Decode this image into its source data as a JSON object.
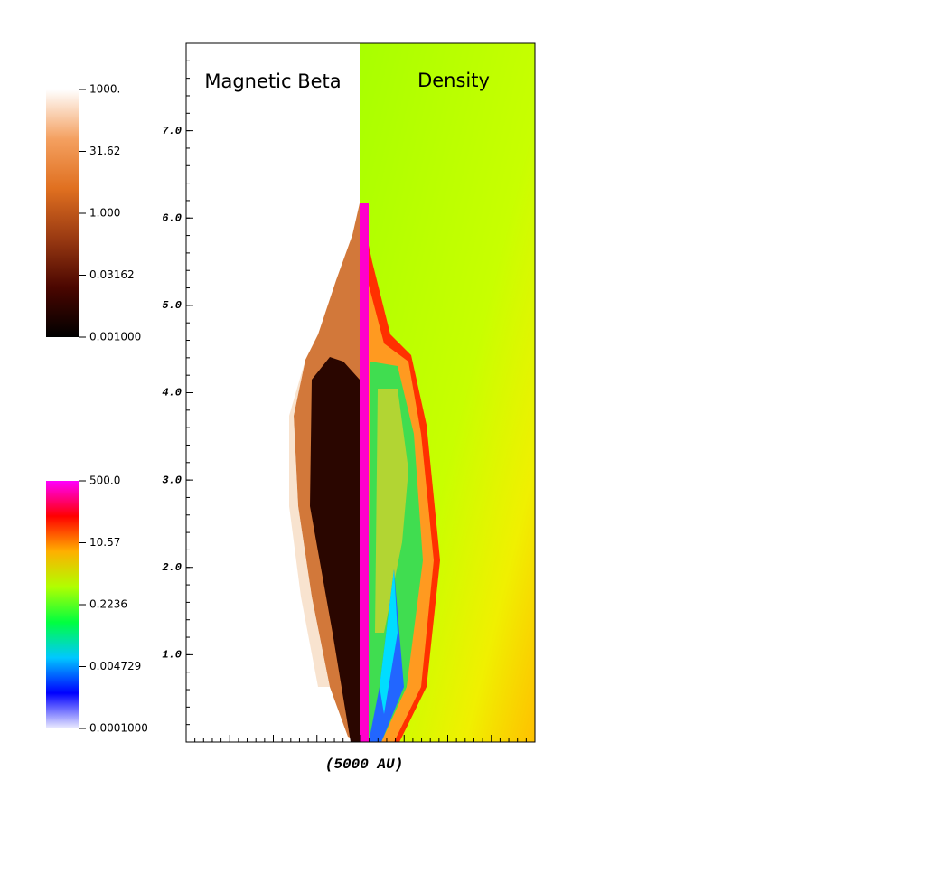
{
  "chart_data": {
    "type": "field-image",
    "panel_titles": [
      "Magnetic Beta",
      "Density"
    ],
    "xlabel": "(5000 AU)",
    "ylim": [
      0,
      8
    ],
    "yticks": [
      {
        "value": 1,
        "label": "1.0"
      },
      {
        "value": 2,
        "label": "2.0"
      },
      {
        "value": 3,
        "label": "3.0"
      },
      {
        "value": 4,
        "label": "4.0"
      },
      {
        "value": 5,
        "label": "5.0"
      },
      {
        "value": 6,
        "label": "6.0"
      },
      {
        "value": 7,
        "label": "7.0"
      }
    ],
    "colorbars": [
      {
        "scale": "log",
        "range": [
          0.001,
          1000
        ],
        "ticks": [
          {
            "value": 1000,
            "label": "1000."
          },
          31.62,
          {
            "value": 1,
            "label": "1.000"
          },
          0.03162,
          {
            "value": 0.001,
            "label": "0.001000"
          }
        ],
        "colors": [
          "#000000",
          "#4a0600",
          "#9a3a12",
          "#e07020",
          "#f4a060",
          "#ffffff"
        ]
      },
      {
        "scale": "log",
        "range": [
          0.0001,
          500
        ],
        "ticks": [
          {
            "value": 500,
            "label": "500.0"
          },
          10.57,
          0.2236,
          0.004729,
          {
            "value": 0.0001,
            "label": "0.0001000"
          }
        ],
        "colors": [
          "#ececff",
          "#0000ff",
          "#00c8ff",
          "#00ff40",
          "#b0ff00",
          "#ffb000",
          "#ff0000",
          "#ff00ff"
        ]
      }
    ]
  }
}
